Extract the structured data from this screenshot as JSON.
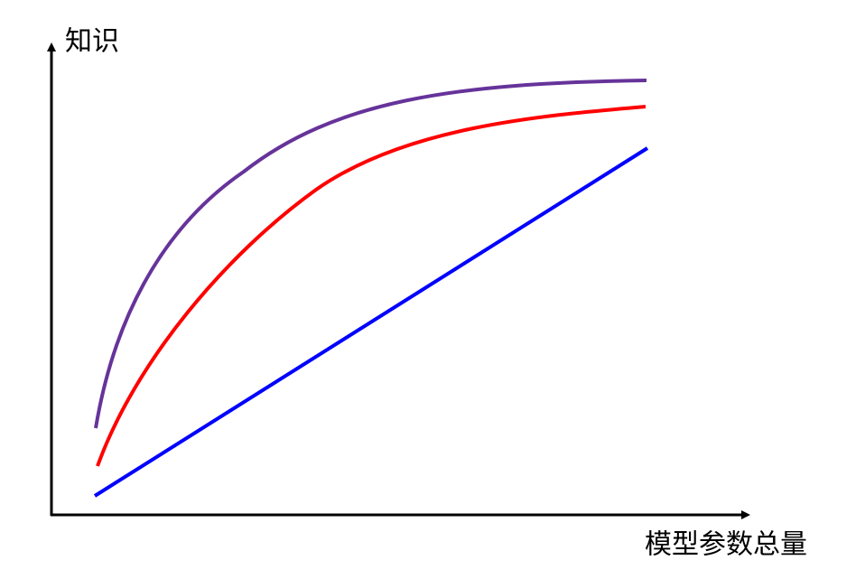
{
  "y_axis_label": "知识",
  "x_axis_label": "模型参数总量"
}
